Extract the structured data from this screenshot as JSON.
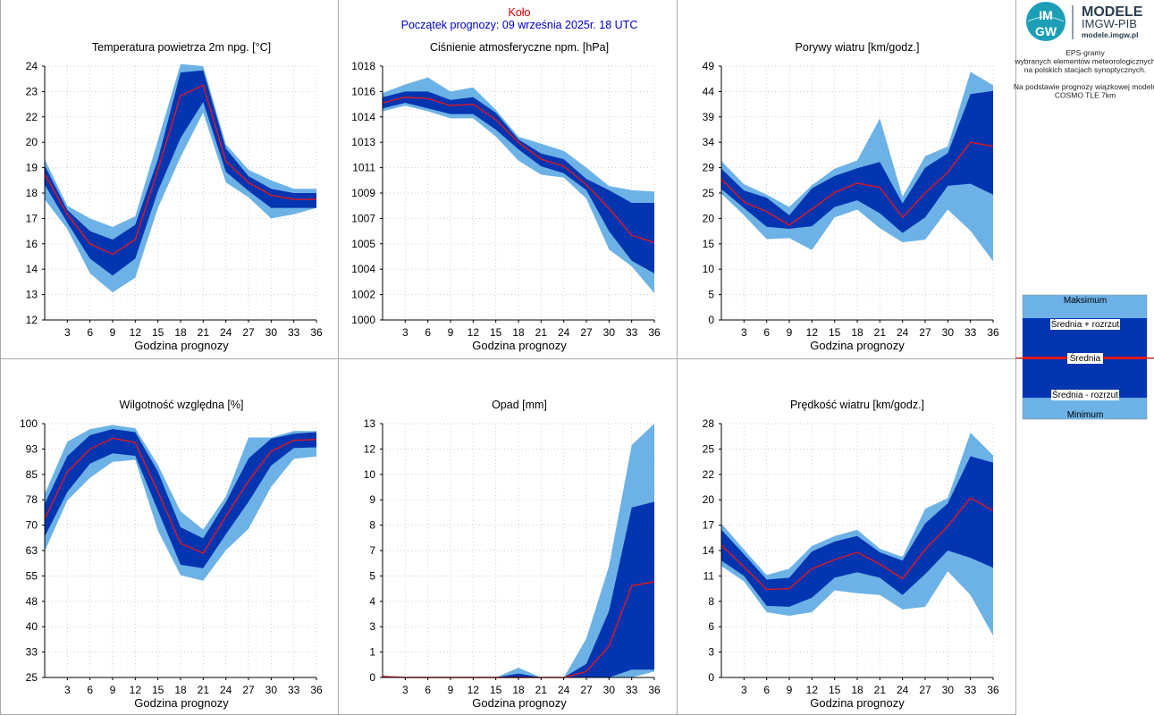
{
  "header": {
    "station": "Koło",
    "forecast_start": "Początek prognozy: 09 września 2025r. 18 UTC"
  },
  "logo": {
    "mark_top": "IM",
    "mark_bottom": "GW",
    "title": "MODELE",
    "org": "IMGW-PIB",
    "url": "modele.imgw.pl"
  },
  "side_info": {
    "lines": [
      "EPS-gramy",
      "wybranych elementów meteorologicznych",
      "na polskich stacjach  synoptycznych.",
      "",
      "Na podstawie prognozy wiązkowej modelu",
      "COSMO TLE 7km"
    ]
  },
  "legend": {
    "max": "Maksimum",
    "mean_plus": "Średnia + rozrzut",
    "mean": "Średnia",
    "mean_minus": "Średnia - rozrzut",
    "min": "Minimum"
  },
  "colors": {
    "envelope": "#6cb2e6",
    "spread": "#0335b1",
    "mean": "#e0181e",
    "grid": "#bfbfbf"
  },
  "chart_data": [
    {
      "type": "area",
      "title": "Temperatura powietrza 2m npg. [°C]",
      "xlabel": "Godzina prognozy",
      "yticks": [
        "12",
        "13",
        "14",
        "16",
        "17",
        "18",
        "19",
        "20",
        "22",
        "23",
        "24"
      ],
      "ylim": [
        12,
        24
      ],
      "x": [
        0,
        3,
        6,
        9,
        12,
        15,
        18,
        21,
        24,
        27,
        30,
        33,
        36
      ],
      "xticks": [
        "3",
        "6",
        "9",
        "12",
        "15",
        "18",
        "21",
        "24",
        "27",
        "30",
        "33",
        "36"
      ],
      "series": [
        {
          "name": "Maksimum",
          "values": [
            19.6,
            17.4,
            16.8,
            16.4,
            16.9,
            20.5,
            24.1,
            24.0,
            20.3,
            19.1,
            18.6,
            18.2,
            18.2
          ]
        },
        {
          "name": "Średnia + rozrzut",
          "values": [
            19.3,
            17.2,
            16.2,
            15.8,
            16.5,
            19.6,
            23.7,
            23.8,
            20.1,
            18.8,
            18.2,
            18.0,
            18.0
          ]
        },
        {
          "name": "Średnia",
          "values": [
            18.9,
            17.0,
            15.6,
            15.1,
            15.8,
            19.1,
            22.6,
            23.1,
            19.5,
            18.5,
            17.9,
            17.7,
            17.7
          ]
        },
        {
          "name": "Średnia - rozrzut",
          "values": [
            18.4,
            16.6,
            14.9,
            14.1,
            14.9,
            18.1,
            20.6,
            22.3,
            19.0,
            18.1,
            17.3,
            17.3,
            17.3
          ]
        },
        {
          "name": "Minimum",
          "values": [
            17.7,
            16.3,
            14.2,
            13.3,
            14.0,
            17.3,
            19.7,
            21.8,
            18.5,
            17.8,
            16.8,
            17.0,
            17.3
          ]
        }
      ]
    },
    {
      "type": "area",
      "title": "Ciśnienie atmosferyczne npm. [hPa]",
      "xlabel": "Godzina prognozy",
      "yticks": [
        "1000",
        "1002",
        "1004",
        "1005",
        "1007",
        "1009",
        "1011",
        "1013",
        "1014",
        "1016",
        "1018"
      ],
      "ylim": [
        1000,
        1018
      ],
      "x": [
        0,
        3,
        6,
        9,
        12,
        15,
        18,
        21,
        24,
        27,
        30,
        33,
        36
      ],
      "xticks": [
        "3",
        "6",
        "9",
        "12",
        "15",
        "18",
        "21",
        "24",
        "27",
        "30",
        "33",
        "36"
      ],
      "series": [
        {
          "name": "Maksimum",
          "values": [
            1016.1,
            1016.7,
            1017.2,
            1016.2,
            1016.5,
            1014.9,
            1013.0,
            1012.5,
            1012.0,
            1010.8,
            1009.5,
            1009.2,
            1009.1
          ]
        },
        {
          "name": "Średnia + rozrzut",
          "values": [
            1015.8,
            1016.2,
            1016.2,
            1015.6,
            1015.8,
            1014.7,
            1012.8,
            1011.8,
            1011.4,
            1010.0,
            1009.2,
            1008.3,
            1008.3
          ]
        },
        {
          "name": "Średnia",
          "values": [
            1015.4,
            1015.8,
            1015.7,
            1015.2,
            1015.3,
            1014.2,
            1012.6,
            1011.4,
            1010.9,
            1009.6,
            1007.9,
            1006.0,
            1005.5
          ]
        },
        {
          "name": "Średnia - rozrzut",
          "values": [
            1015.0,
            1015.4,
            1015.0,
            1014.6,
            1014.6,
            1013.5,
            1012.1,
            1010.9,
            1010.4,
            1009.2,
            1006.3,
            1004.2,
            1003.3
          ]
        },
        {
          "name": "Minimum",
          "values": [
            1014.8,
            1015.2,
            1014.8,
            1014.3,
            1014.3,
            1013.0,
            1011.3,
            1010.3,
            1010.1,
            1008.6,
            1005.0,
            1003.8,
            1001.9
          ]
        }
      ]
    },
    {
      "type": "area",
      "title": "Porywy wiatru [km/godz.]",
      "xlabel": "Godzina prognozy",
      "yticks": [
        "0",
        "5",
        "10",
        "15",
        "20",
        "25",
        "29",
        "34",
        "39",
        "44",
        "49"
      ],
      "ylim": [
        0,
        49
      ],
      "x": [
        0,
        3,
        6,
        9,
        12,
        15,
        18,
        21,
        24,
        27,
        30,
        33,
        36
      ],
      "xticks": [
        "3",
        "6",
        "9",
        "12",
        "15",
        "18",
        "21",
        "24",
        "27",
        "30",
        "33",
        "36"
      ],
      "series": [
        {
          "name": "Maksimum",
          "values": [
            30.7,
            26.2,
            24.2,
            21.8,
            26.0,
            29.2,
            30.8,
            38.9,
            23.8,
            31.6,
            33.5,
            47.9,
            45.3
          ]
        },
        {
          "name": "Średnia + rozrzut",
          "values": [
            29.2,
            25.0,
            23.6,
            20.2,
            25.4,
            27.8,
            29.3,
            30.5,
            22.5,
            29.4,
            32.2,
            43.6,
            44.2
          ]
        },
        {
          "name": "Średnia",
          "values": [
            27.2,
            22.8,
            20.9,
            18.3,
            21.4,
            24.6,
            26.4,
            25.6,
            19.8,
            24.5,
            28.5,
            34.3,
            33.5
          ]
        },
        {
          "name": "Średnia - rozrzut",
          "values": [
            25.3,
            21.6,
            18.0,
            17.6,
            18.1,
            21.8,
            23.1,
            20.6,
            16.8,
            19.8,
            25.9,
            26.3,
            24.2
          ]
        },
        {
          "name": "Minimum",
          "values": [
            24.4,
            20.2,
            15.6,
            15.8,
            13.5,
            19.8,
            21.3,
            17.7,
            15.0,
            15.5,
            21.3,
            17.2,
            11.3
          ]
        }
      ]
    },
    {
      "type": "area",
      "title": "Wilgotność względna [%]",
      "xlabel": "Godzina prognozy",
      "yticks": [
        "25",
        "33",
        "40",
        "48",
        "55",
        "63",
        "70",
        "78",
        "85",
        "93",
        "100"
      ],
      "ylim": [
        25,
        100
      ],
      "x": [
        0,
        3,
        6,
        9,
        12,
        15,
        18,
        21,
        24,
        27,
        30,
        33,
        36
      ],
      "xticks": [
        "3",
        "6",
        "9",
        "12",
        "15",
        "18",
        "21",
        "24",
        "27",
        "30",
        "33",
        "36"
      ],
      "series": [
        {
          "name": "Maksimum",
          "values": [
            79.2,
            94.7,
            98.4,
            99.6,
            98.6,
            87.8,
            74.1,
            68.7,
            78.5,
            95.9,
            95.9,
            97.8,
            97.8
          ]
        },
        {
          "name": "Średnia + rozrzut",
          "values": [
            76.3,
            90.4,
            96.6,
            98.4,
            97.5,
            85.8,
            69.4,
            66.1,
            76.8,
            89.7,
            95.6,
            97.0,
            97.5
          ]
        },
        {
          "name": "Średnia",
          "values": [
            71.9,
            85.7,
            92.5,
            95.7,
            94.4,
            79.9,
            64.6,
            61.7,
            72.6,
            83.0,
            91.8,
            95.1,
            95.3
          ]
        },
        {
          "name": "Średnia - rozrzut",
          "values": [
            66.6,
            79.8,
            88.2,
            91.2,
            90.5,
            74.3,
            58.3,
            57.3,
            67.3,
            76.9,
            87.6,
            92.8,
            93.0
          ]
        },
        {
          "name": "Minimum",
          "values": [
            62.3,
            77.3,
            84.0,
            88.7,
            89.3,
            68.4,
            55.2,
            53.6,
            62.6,
            68.9,
            81.3,
            89.6,
            90.3
          ]
        }
      ]
    },
    {
      "type": "area",
      "title": "Opad [mm]",
      "xlabel": "Godzina prognozy",
      "yticks": [
        "0",
        "1",
        "3",
        "4",
        "5",
        "7",
        "8",
        "9",
        "10",
        "12",
        "13"
      ],
      "ylim": [
        0,
        13
      ],
      "x": [
        0,
        3,
        6,
        9,
        12,
        15,
        18,
        21,
        24,
        27,
        30,
        33,
        36
      ],
      "xticks": [
        "3",
        "6",
        "9",
        "12",
        "15",
        "18",
        "21",
        "24",
        "27",
        "30",
        "33",
        "36"
      ],
      "series": [
        {
          "name": "Maksimum",
          "values": [
            0.1,
            0.0,
            0.0,
            0.0,
            0.0,
            0.0,
            0.5,
            0.0,
            0.0,
            2.0,
            5.7,
            11.9,
            13.0
          ]
        },
        {
          "name": "Średnia + rozrzut",
          "values": [
            0.0,
            0.0,
            0.0,
            0.0,
            0.0,
            0.0,
            0.2,
            0.0,
            0.0,
            0.7,
            3.4,
            8.7,
            9.0
          ]
        },
        {
          "name": "Średnia",
          "values": [
            0.05,
            0.0,
            0.0,
            0.0,
            0.0,
            0.0,
            0.0,
            0.0,
            0.0,
            0.3,
            1.6,
            4.7,
            4.9
          ]
        },
        {
          "name": "Średnia - rozrzut",
          "values": [
            0.0,
            0.0,
            0.0,
            0.0,
            0.0,
            0.0,
            0.0,
            0.0,
            0.0,
            0.0,
            0.0,
            0.4,
            0.4
          ]
        },
        {
          "name": "Minimum",
          "values": [
            0.0,
            0.0,
            0.0,
            0.0,
            0.0,
            0.0,
            0.0,
            0.0,
            0.0,
            0.0,
            0.0,
            0.0,
            0.3
          ]
        }
      ]
    },
    {
      "type": "area",
      "title": "Prędkość wiatru [km/godz.]",
      "xlabel": "Godzina prognozy",
      "yticks": [
        "0",
        "3",
        "6",
        "8",
        "11",
        "14",
        "17",
        "20",
        "22",
        "25",
        "28"
      ],
      "ylim": [
        0,
        28
      ],
      "x": [
        0,
        3,
        6,
        9,
        12,
        15,
        18,
        21,
        24,
        27,
        30,
        33,
        36
      ],
      "xticks": [
        "3",
        "6",
        "9",
        "12",
        "15",
        "18",
        "21",
        "24",
        "27",
        "30",
        "33",
        "36"
      ],
      "series": [
        {
          "name": "Maksimum",
          "values": [
            17.0,
            14.1,
            11.3,
            12.0,
            14.5,
            15.6,
            16.3,
            14.2,
            13.3,
            18.6,
            19.8,
            27.0,
            24.5
          ]
        },
        {
          "name": "Średnia + rozrzut",
          "values": [
            16.3,
            13.6,
            10.8,
            11.0,
            13.9,
            15.0,
            15.6,
            13.8,
            12.9,
            17.0,
            19.2,
            24.4,
            23.7
          ]
        },
        {
          "name": "Średnia",
          "values": [
            14.6,
            12.2,
            9.7,
            9.8,
            12.0,
            13.0,
            13.8,
            12.5,
            10.9,
            14.1,
            16.7,
            19.8,
            18.4
          ]
        },
        {
          "name": "Średnia - rozrzut",
          "values": [
            12.9,
            11.2,
            7.9,
            7.8,
            8.8,
            11.0,
            11.6,
            11.0,
            9.1,
            11.4,
            14.0,
            13.2,
            12.1
          ]
        },
        {
          "name": "Minimum",
          "values": [
            12.3,
            10.6,
            7.2,
            6.8,
            7.2,
            9.6,
            9.3,
            9.1,
            7.5,
            7.8,
            11.7,
            9.1,
            4.6
          ]
        }
      ]
    }
  ]
}
